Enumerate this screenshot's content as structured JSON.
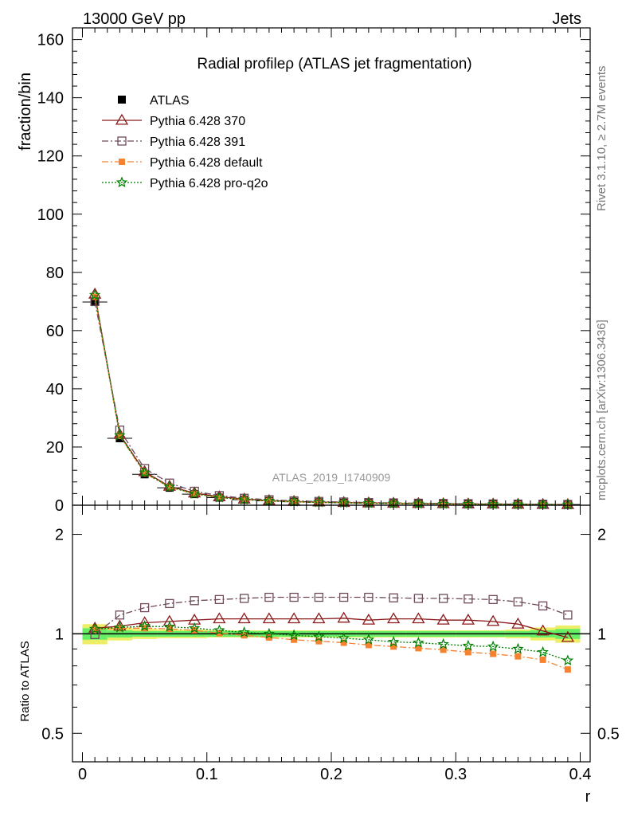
{
  "header": {
    "left": "13000 GeV pp",
    "right": "Jets"
  },
  "side_texts": {
    "rivet": "Rivet 3.1.10, ≥ 2.7M events",
    "mcplots": "mcplots.cern.ch [arXiv:1306.3436]"
  },
  "colors": {
    "atlas": "#000000",
    "p370": "#8b1a1a",
    "p391": "#6e4a5a",
    "pdefault": "#f58230",
    "pq2o": "#008000",
    "band_inner": "#66ee66",
    "band_outer": "#eeee66"
  },
  "chart_data": [
    {
      "type": "line",
      "title": "Radial profileρ (ATLAS jet fragmentation)",
      "ylabel": "fraction/bin",
      "xlabel": "",
      "watermark": "ATLAS_2019_I1740909",
      "xlim": [
        -0.008,
        0.408
      ],
      "ylim": [
        0,
        164
      ],
      "y_ticks": [
        "0",
        "20",
        "40",
        "60",
        "80",
        "100",
        "120",
        "140",
        "160"
      ],
      "legend_position": "top-left",
      "x": [
        0.01,
        0.03,
        0.05,
        0.07,
        0.09,
        0.11,
        0.13,
        0.15,
        0.17,
        0.19,
        0.21,
        0.23,
        0.25,
        0.27,
        0.29,
        0.31,
        0.33,
        0.35,
        0.37,
        0.39
      ],
      "series": [
        {
          "name": "ATLAS",
          "marker": "square",
          "values": [
            69.8,
            23.0,
            10.6,
            6.0,
            3.8,
            2.6,
            1.9,
            1.5,
            1.2,
            1.0,
            0.85,
            0.72,
            0.62,
            0.54,
            0.47,
            0.41,
            0.36,
            0.31,
            0.27,
            0.24
          ]
        },
        {
          "name": "Pythia 6.428 370",
          "marker": "triangle-open",
          "values": [
            72.5,
            24.3,
            11.5,
            6.5,
            4.2,
            2.9,
            2.1,
            1.6,
            1.3,
            1.1,
            0.94,
            0.78,
            0.68,
            0.59,
            0.51,
            0.44,
            0.39,
            0.33,
            0.27,
            0.23
          ]
        },
        {
          "name": "Pythia 6.428 391",
          "marker": "square-open",
          "values": [
            70.0,
            25.8,
            12.6,
            7.6,
            4.8,
            3.3,
            2.4,
            1.9,
            1.5,
            1.3,
            1.1,
            0.93,
            0.8,
            0.7,
            0.6,
            0.53,
            0.46,
            0.4,
            0.33,
            0.27
          ]
        },
        {
          "name": "Pythia 6.428 default",
          "marker": "square-filled",
          "values": [
            71.6,
            23.8,
            11.0,
            6.2,
            3.9,
            2.6,
            1.9,
            1.45,
            1.15,
            0.95,
            0.8,
            0.67,
            0.57,
            0.49,
            0.42,
            0.36,
            0.31,
            0.27,
            0.23,
            0.19
          ]
        },
        {
          "name": "Pythia 6.428 pro-q2o",
          "marker": "star",
          "values": [
            72.2,
            24.0,
            11.2,
            6.3,
            3.95,
            2.65,
            1.92,
            1.48,
            1.18,
            0.98,
            0.82,
            0.69,
            0.59,
            0.51,
            0.44,
            0.38,
            0.33,
            0.28,
            0.24,
            0.2
          ]
        }
      ]
    },
    {
      "type": "line",
      "ylabel": "Ratio to ATLAS",
      "xlabel": "r",
      "yscale": "log",
      "xlim": [
        -0.008,
        0.408
      ],
      "ylim": [
        0.41,
        2.45
      ],
      "y_ticks": [
        "0.5",
        "1",
        "2"
      ],
      "x_ticks": [
        "0",
        "0.1",
        "0.2",
        "0.3",
        "0.4"
      ],
      "x": [
        0.01,
        0.03,
        0.05,
        0.07,
        0.09,
        0.11,
        0.13,
        0.15,
        0.17,
        0.19,
        0.21,
        0.23,
        0.25,
        0.27,
        0.29,
        0.31,
        0.33,
        0.35,
        0.37,
        0.39
      ],
      "band_inner": [
        0.04,
        0.025,
        0.02,
        0.02,
        0.02,
        0.02,
        0.02,
        0.02,
        0.02,
        0.02,
        0.02,
        0.02,
        0.02,
        0.02,
        0.02,
        0.02,
        0.02,
        0.02,
        0.025,
        0.035
      ],
      "band_outer": [
        0.07,
        0.045,
        0.035,
        0.03,
        0.03,
        0.025,
        0.025,
        0.025,
        0.025,
        0.025,
        0.025,
        0.025,
        0.025,
        0.025,
        0.025,
        0.025,
        0.025,
        0.03,
        0.045,
        0.06
      ],
      "series": [
        {
          "name": "Pythia 6.428 370",
          "values": [
            1.04,
            1.055,
            1.08,
            1.09,
            1.1,
            1.11,
            1.11,
            1.11,
            1.11,
            1.11,
            1.115,
            1.1,
            1.11,
            1.11,
            1.1,
            1.1,
            1.09,
            1.07,
            1.02,
            0.975
          ]
        },
        {
          "name": "Pythia 6.428 391",
          "values": [
            0.995,
            1.14,
            1.2,
            1.235,
            1.26,
            1.27,
            1.28,
            1.29,
            1.29,
            1.29,
            1.29,
            1.29,
            1.285,
            1.28,
            1.28,
            1.275,
            1.27,
            1.25,
            1.215,
            1.14
          ]
        },
        {
          "name": "Pythia 6.428 default",
          "values": [
            1.03,
            1.04,
            1.04,
            1.035,
            1.025,
            1.005,
            0.99,
            0.975,
            0.96,
            0.95,
            0.94,
            0.925,
            0.915,
            0.905,
            0.895,
            0.88,
            0.87,
            0.855,
            0.835,
            0.78
          ]
        },
        {
          "name": "Pythia 6.428 pro-q2o",
          "values": [
            1.035,
            1.045,
            1.055,
            1.05,
            1.04,
            1.025,
            1.01,
            1.0,
            0.99,
            0.98,
            0.97,
            0.96,
            0.945,
            0.94,
            0.93,
            0.92,
            0.915,
            0.9,
            0.88,
            0.83
          ]
        }
      ]
    }
  ]
}
